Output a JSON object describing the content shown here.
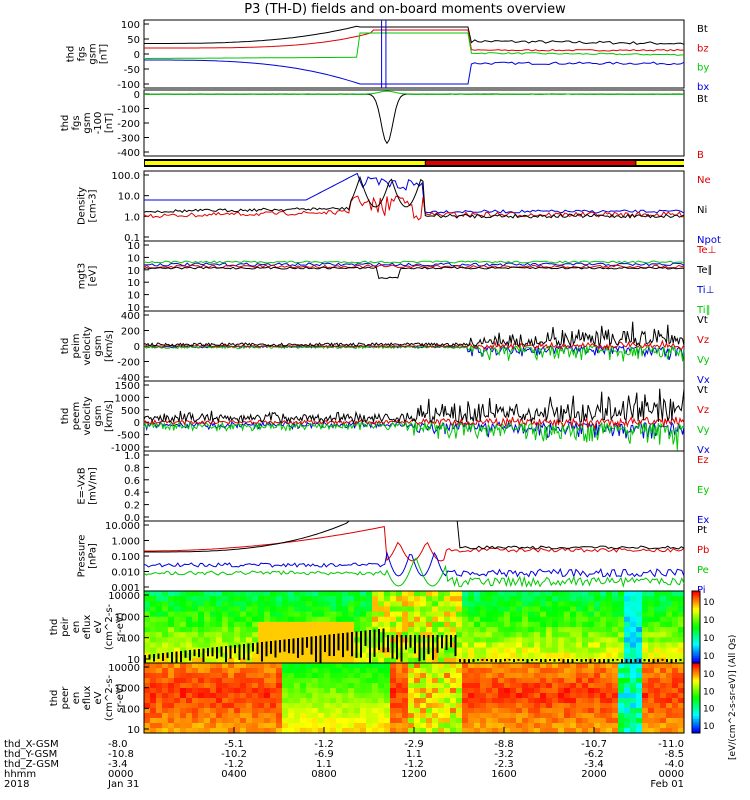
{
  "title": "P3 (TH-D) fields and on-board moments overview",
  "colors": {
    "black": "#000000",
    "red": "#e00000",
    "green": "#00c800",
    "blue": "#0000e0",
    "yellow": "#ffff00"
  },
  "chart_data": {
    "type": "line",
    "x_ticks": [
      "0000",
      "0400",
      "0800",
      "1200",
      "1600",
      "2000",
      "0000"
    ],
    "x_footer": {
      "labels": [
        "thd_X-GSM",
        "thd_Y-GSM",
        "thd_Z-GSM",
        "hhmm",
        "2018"
      ],
      "rows": [
        [
          "-8.0",
          "-5.1",
          "-1.2",
          "-2.9",
          "-8.8",
          "-10.7",
          "-11.0"
        ],
        [
          "-10.8",
          "-10.2",
          "-6.9",
          "1.1",
          "-3.2",
          "-6.2",
          "-8.5"
        ],
        [
          "-3.4",
          "-1.2",
          "1.1",
          "-1.2",
          "-2.3",
          "-3.4",
          "-4.0"
        ],
        [
          "0000",
          "0400",
          "0800",
          "1200",
          "1600",
          "2000",
          "0000"
        ],
        [
          "Jan 31",
          "",
          "",
          "",
          "",
          "",
          "Feb 01"
        ]
      ]
    },
    "panels": [
      {
        "id": "fgs_gsm",
        "ylabel": [
          "thd",
          "fgs",
          "gsm",
          "[nT]"
        ],
        "yticks": [
          "100",
          "50",
          "0",
          "-50",
          "-100"
        ],
        "legend": [
          "Bt",
          "bz",
          "by",
          "bx"
        ],
        "legend_colors": [
          "#000000",
          "#e00000",
          "#00c800",
          "#0000e0"
        ]
      },
      {
        "id": "fgs_gsm_zoom",
        "ylabel": [
          "thd",
          "fgs",
          "gsm",
          "-100",
          "[nT]"
        ],
        "yticks": [
          "0",
          "-100",
          "-200",
          "-300",
          "-400"
        ],
        "legend": [
          "Bt",
          "B"
        ],
        "legend_colors": [
          "#000000",
          "#e00000"
        ]
      },
      {
        "id": "density",
        "ylabel": [
          "Density",
          "[cm-3]"
        ],
        "yticks": [
          "100.0",
          "10.0",
          "1.0",
          "0.1"
        ],
        "legend": [
          "Ne",
          "Ni",
          "Npot"
        ],
        "legend_colors": [
          "#e00000",
          "#000000",
          "#0000e0"
        ]
      },
      {
        "id": "temperature",
        "ylabel": [
          "mgt3",
          "[eV]"
        ],
        "yticks": [
          "10",
          "10",
          "10",
          "10",
          "10",
          "10"
        ],
        "legend": [
          "Te⊥",
          "Te∥",
          "Ti⊥",
          "Ti∥"
        ],
        "legend_colors": [
          "#e00000",
          "#000000",
          "#0000e0",
          "#00c800"
        ]
      },
      {
        "id": "peim_velocity",
        "ylabel": [
          "thd",
          "peim",
          "velocity",
          "gsm",
          "[km/s]"
        ],
        "yticks": [
          "400",
          "200",
          "0",
          "-200",
          "-400"
        ],
        "legend": [
          "Vt",
          "Vz",
          "Vy",
          "Vx"
        ],
        "legend_colors": [
          "#000000",
          "#e00000",
          "#00c800",
          "#0000e0"
        ]
      },
      {
        "id": "peem_velocity",
        "ylabel": [
          "thd",
          "peem",
          "velocity",
          "gsm",
          "[km/s]"
        ],
        "yticks": [
          "1500",
          "1000",
          "500",
          "0",
          "-500",
          "-1000"
        ],
        "legend": [
          "Vt",
          "Vz",
          "Vy",
          "Vx"
        ],
        "legend_colors": [
          "#000000",
          "#e00000",
          "#00c800",
          "#0000e0"
        ]
      },
      {
        "id": "efield",
        "ylabel": [
          "E=-VxB",
          "[mV/m]"
        ],
        "yticks": [
          "1.0",
          "0.8",
          "0.6",
          "0.4",
          "0.2",
          "0.0"
        ],
        "legend": [
          "Ez",
          "Ey",
          "Ex"
        ],
        "legend_colors": [
          "#e00000",
          "#00c800",
          "#0000e0"
        ]
      },
      {
        "id": "pressure",
        "ylabel": [
          "Pressure",
          "[nPa]"
        ],
        "yticks": [
          "10.000",
          "1.000",
          "0.100",
          "0.010",
          "0.001"
        ],
        "legend": [
          "Pt",
          "Pb",
          "Pe",
          "Pi"
        ],
        "legend_colors": [
          "#000000",
          "#e00000",
          "#00c800",
          "#0000e0"
        ]
      },
      {
        "id": "peir_spec",
        "ylabel": [
          "thd",
          "peir",
          "en",
          "eflux",
          "eV",
          "(cm^2-s-",
          "sr-eV)"
        ],
        "yticks": [
          "10000",
          "1000",
          "100",
          "10"
        ],
        "colorbar_label": "[eV/(cm^2-s-sr-eV)] (All Qs)",
        "colorbar_ticks": [
          "10",
          "10",
          "10",
          "10"
        ]
      },
      {
        "id": "peer_spec",
        "ylabel": [
          "thd",
          "peer",
          "en",
          "eflux",
          "eV",
          "(cm^2-s-",
          "sr-eV)"
        ],
        "yticks": [
          "10000",
          "1000",
          "100",
          "10"
        ],
        "colorbar_ticks": [
          "10",
          "10",
          "10",
          "10"
        ]
      }
    ],
    "region_bar": [
      {
        "from": 0,
        "to": 0.52,
        "color": "#ffff00"
      },
      {
        "from": 0.52,
        "to": 0.91,
        "color": "#e00000"
      },
      {
        "from": 0.91,
        "to": 1,
        "color": "#ffff00"
      }
    ]
  }
}
